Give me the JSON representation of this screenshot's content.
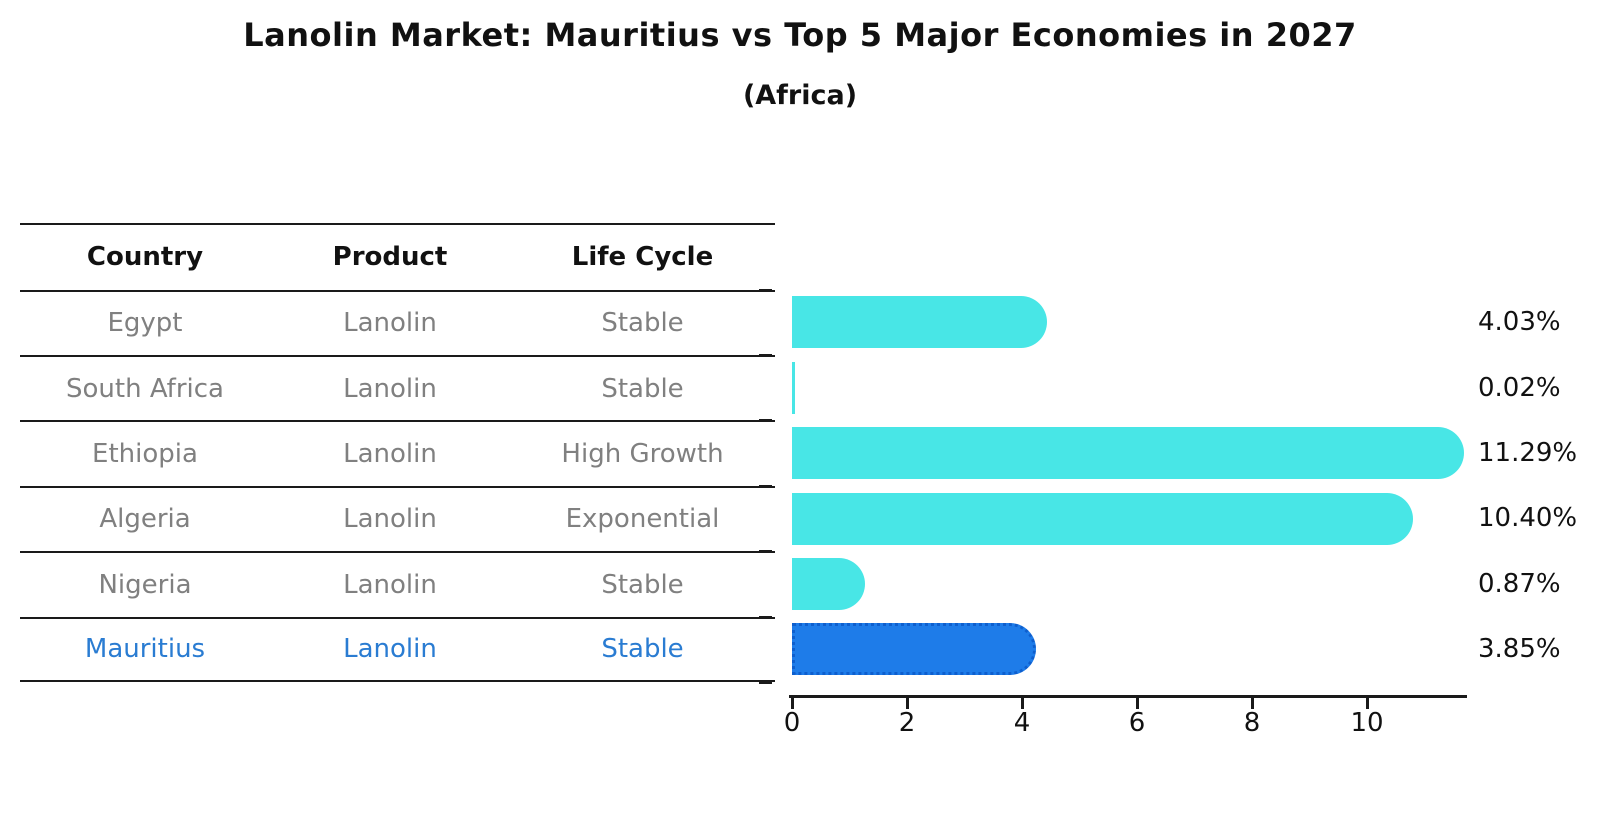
{
  "header": {
    "title": "Lanolin Market: Mauritius vs Top 5 Major Economies in 2027",
    "subtitle": "(Africa)"
  },
  "table": {
    "columns": [
      "Country",
      "Product",
      "Life Cycle"
    ],
    "rows": [
      {
        "country": "Egypt",
        "product": "Lanolin",
        "life_cycle": "Stable",
        "highlight": false
      },
      {
        "country": "South Africa",
        "product": "Lanolin",
        "life_cycle": "Stable",
        "highlight": false
      },
      {
        "country": "Ethiopia",
        "product": "Lanolin",
        "life_cycle": "High Growth",
        "highlight": false
      },
      {
        "country": "Algeria",
        "product": "Lanolin",
        "life_cycle": "Exponential",
        "highlight": false
      },
      {
        "country": "Nigeria",
        "product": "Lanolin",
        "life_cycle": "Stable",
        "highlight": false
      },
      {
        "country": "Mauritius",
        "product": "Lanolin",
        "life_cycle": "Stable",
        "highlight": true
      }
    ]
  },
  "chart_data": {
    "type": "bar",
    "orientation": "horizontal",
    "title": "Lanolin Market: Mauritius vs Top 5 Major Economies in 2027 (Africa)",
    "categories": [
      "Egypt",
      "South Africa",
      "Ethiopia",
      "Algeria",
      "Nigeria",
      "Mauritius"
    ],
    "values": [
      4.03,
      0.02,
      11.29,
      10.4,
      0.87,
      3.85
    ],
    "value_labels": [
      "4.03%",
      "0.02%",
      "11.29%",
      "10.40%",
      "0.87%",
      "3.85%"
    ],
    "unit": "%",
    "x_ticks": [
      0,
      2,
      4,
      6,
      8,
      10
    ],
    "xlim": [
      0,
      11.8
    ],
    "grid": false,
    "legend": false,
    "highlight_index": 5,
    "colors": {
      "bar_default": "#48e6e6",
      "bar_highlight": "#1e7ce9",
      "bar_highlight_border": "#0e5fce",
      "table_text": "#808080",
      "highlight_text": "#2a7cd2",
      "axis": "#1a1a1a"
    }
  }
}
